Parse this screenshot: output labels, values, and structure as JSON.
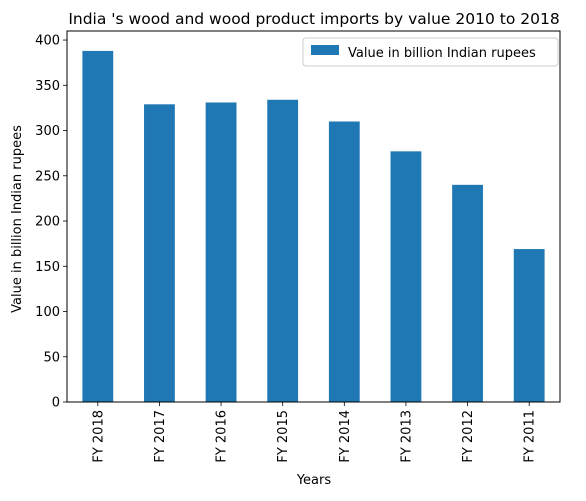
{
  "chart_data": {
    "type": "bar",
    "title": "India 's wood and wood product imports by value 2010 to 2018",
    "xlabel": "Years",
    "ylabel": "Value in billion Indian rupees",
    "categories": [
      "FY 2018",
      "FY 2017",
      "FY 2016",
      "FY 2015",
      "FY 2014",
      "FY 2013",
      "FY 2012",
      "FY 2011"
    ],
    "series": [
      {
        "name": "Value in billion Indian rupees",
        "values": [
          388,
          329,
          331,
          334,
          310,
          277,
          240,
          169
        ]
      }
    ],
    "ylim": [
      0,
      410
    ],
    "yticks": [
      0,
      50,
      100,
      150,
      200,
      250,
      300,
      350,
      400
    ],
    "grid": false,
    "legend_position": "top-right",
    "bar_color": "#1f77b4"
  }
}
